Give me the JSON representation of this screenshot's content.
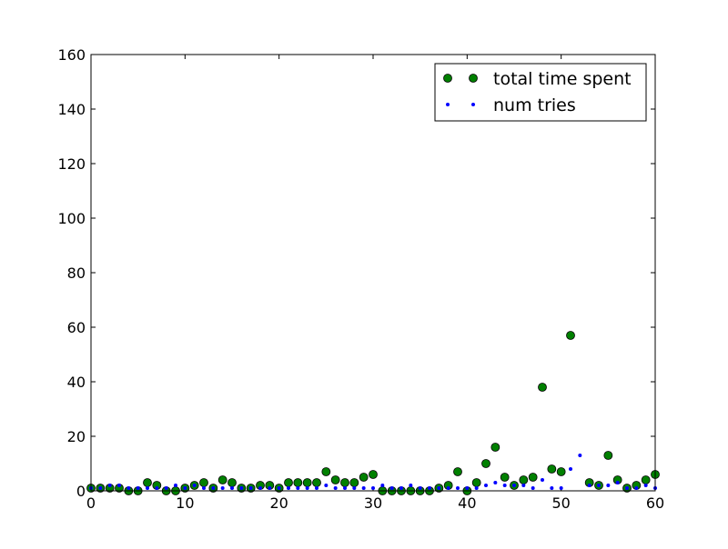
{
  "chart_data": {
    "type": "scatter",
    "title": "",
    "xlabel": "",
    "ylabel": "",
    "xlim": [
      0,
      60
    ],
    "ylim": [
      0,
      160
    ],
    "x_ticks": [
      0,
      10,
      20,
      30,
      40,
      50,
      60
    ],
    "y_ticks": [
      0,
      20,
      40,
      60,
      80,
      100,
      120,
      140,
      160
    ],
    "grid": false,
    "legend_position": "top-right",
    "series": [
      {
        "name": "total time spent",
        "color": "#008000",
        "marker": "large-circle",
        "x": [
          0,
          1,
          2,
          3,
          4,
          5,
          6,
          7,
          8,
          9,
          10,
          11,
          12,
          13,
          14,
          15,
          16,
          17,
          18,
          19,
          20,
          21,
          22,
          23,
          24,
          25,
          26,
          27,
          28,
          29,
          30,
          31,
          32,
          33,
          34,
          35,
          36,
          37,
          38,
          39,
          40,
          41,
          42,
          43,
          44,
          45,
          46,
          47,
          48,
          49,
          50,
          51,
          52,
          53,
          54,
          55,
          56,
          57,
          58,
          59,
          60
        ],
        "y": [
          1,
          1,
          1,
          1,
          0,
          0,
          3,
          2,
          0,
          0,
          1,
          2,
          3,
          1,
          4,
          3,
          1,
          1,
          2,
          2,
          1,
          3,
          3,
          3,
          3,
          7,
          4,
          3,
          3,
          5,
          6,
          0,
          0,
          0,
          0,
          0,
          0,
          1,
          2,
          7,
          0,
          3,
          10,
          16,
          5,
          2,
          4,
          5,
          38,
          8,
          7,
          57,
          null,
          3,
          2,
          13,
          4,
          1,
          2,
          4,
          6
        ]
      },
      {
        "name": "num tries",
        "color": "#0000ff",
        "marker": "small-dot",
        "x": [
          0,
          1,
          2,
          3,
          4,
          5,
          6,
          7,
          8,
          9,
          10,
          11,
          12,
          13,
          14,
          15,
          16,
          17,
          18,
          19,
          20,
          21,
          22,
          23,
          24,
          25,
          26,
          27,
          28,
          29,
          30,
          31,
          32,
          33,
          34,
          35,
          36,
          37,
          38,
          39,
          40,
          41,
          42,
          43,
          44,
          45,
          46,
          47,
          48,
          49,
          50,
          51,
          52,
          53,
          54,
          55,
          56,
          57,
          58,
          59,
          60
        ],
        "y": [
          1,
          1,
          2,
          2,
          1,
          1,
          1,
          1,
          1,
          2,
          1,
          2,
          1,
          1,
          1,
          1,
          1,
          1,
          1,
          1,
          1,
          1,
          1,
          1,
          1,
          2,
          1,
          1,
          1,
          1,
          1,
          2,
          1,
          1,
          2,
          1,
          1,
          1,
          1,
          1,
          1,
          1,
          2,
          3,
          2,
          2,
          2,
          1,
          4,
          1,
          1,
          8,
          13,
          2,
          2,
          2,
          3,
          1,
          1,
          2,
          1
        ]
      }
    ]
  }
}
